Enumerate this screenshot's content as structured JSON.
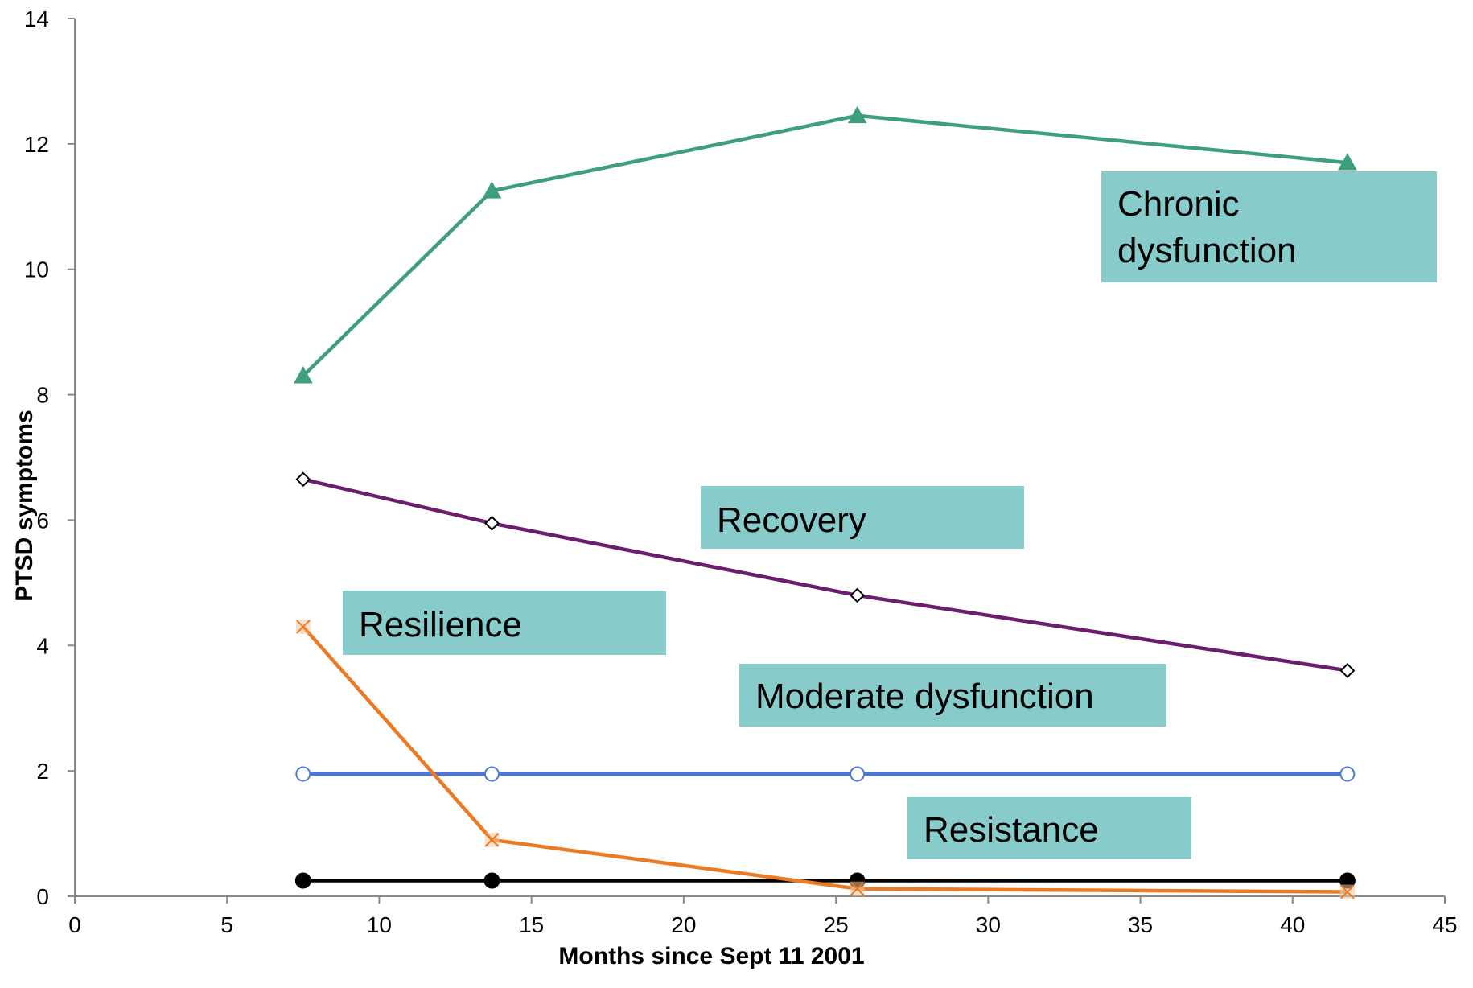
{
  "chart_data": {
    "type": "line",
    "xlabel": "Months since Sept 11 2001",
    "ylabel": "PTSD symptoms",
    "xlim": [
      0,
      45
    ],
    "ylim": [
      0,
      14
    ],
    "x_ticks": [
      "0",
      "5",
      "10",
      "15",
      "20",
      "25",
      "30",
      "35",
      "40",
      "45"
    ],
    "y_ticks": [
      "0",
      "2",
      "4",
      "6",
      "8",
      "10",
      "12",
      "14"
    ],
    "grid": false,
    "legend": "none",
    "series": [
      {
        "key": "chronic",
        "color": "#3f9e7e",
        "marker": "triangle",
        "x": [
          7.5,
          13.7,
          25.7,
          41.8
        ],
        "y": [
          8.3,
          11.25,
          12.45,
          11.7
        ]
      },
      {
        "key": "recovery",
        "color": "#6b1d6e",
        "marker": "diamond",
        "x": [
          7.5,
          13.7,
          25.7,
          41.8
        ],
        "y": [
          6.65,
          5.95,
          4.8,
          3.6
        ]
      },
      {
        "key": "moderate",
        "color": "#4a78d4",
        "marker": "circle-open",
        "x": [
          7.5,
          13.7,
          25.7,
          41.8
        ],
        "y": [
          1.95,
          1.95,
          1.95,
          1.95
        ]
      },
      {
        "key": "resistance",
        "color": "#000000",
        "marker": "circle-filled",
        "x": [
          7.5,
          13.7,
          25.7,
          41.8
        ],
        "y": [
          0.25,
          0.25,
          0.25,
          0.25
        ]
      },
      {
        "key": "resilience",
        "color": "#ec7a22",
        "marker": "x",
        "x": [
          7.5,
          13.7,
          25.7,
          41.8
        ],
        "y": [
          4.3,
          0.9,
          0.12,
          0.07
        ]
      }
    ],
    "annotations": [
      {
        "key": "chronic",
        "lines": [
          "Chronic",
          "dysfunction"
        ]
      },
      {
        "key": "recovery",
        "lines": [
          "Recovery"
        ]
      },
      {
        "key": "resilience",
        "lines": [
          "Resilience"
        ]
      },
      {
        "key": "moderate",
        "lines": [
          "Moderate dysfunction"
        ]
      },
      {
        "key": "resistance",
        "lines": [
          "Resistance"
        ]
      }
    ],
    "annotation_color": "#88cbcb"
  }
}
